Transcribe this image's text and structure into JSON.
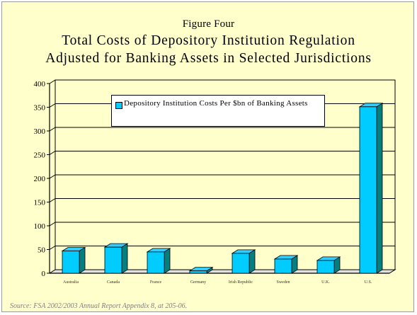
{
  "figure": {
    "label": "Figure Four",
    "title_line1": "Total Costs of Depository Institution Regulation",
    "title_line2": "Adjusted for Banking Assets in Selected Jurisdictions",
    "source": "Source: FSA 2002/2003 Annual Report Appendix 8, at 205-06."
  },
  "colors": {
    "background": "#ffffcc",
    "bar_front": "#00ccff",
    "bar_side": "#008080",
    "bar_top": "#33ccff"
  },
  "chart_data": {
    "type": "bar",
    "title": "",
    "xlabel": "",
    "ylabel": "",
    "ylim": [
      0,
      400
    ],
    "yticks": [
      0,
      50,
      100,
      150,
      200,
      250,
      300,
      350,
      400
    ],
    "grid": true,
    "legend_position": "top-left",
    "categories": [
      "Australia",
      "Canada",
      "France",
      "Germany",
      "Irish Republic",
      "Sweden",
      "U.K.",
      "U.S."
    ],
    "series": [
      {
        "name": "Depository Institution Costs Per $bn of Banking Assets",
        "values": [
          47,
          55,
          45,
          5,
          42,
          30,
          27,
          351
        ]
      }
    ]
  }
}
